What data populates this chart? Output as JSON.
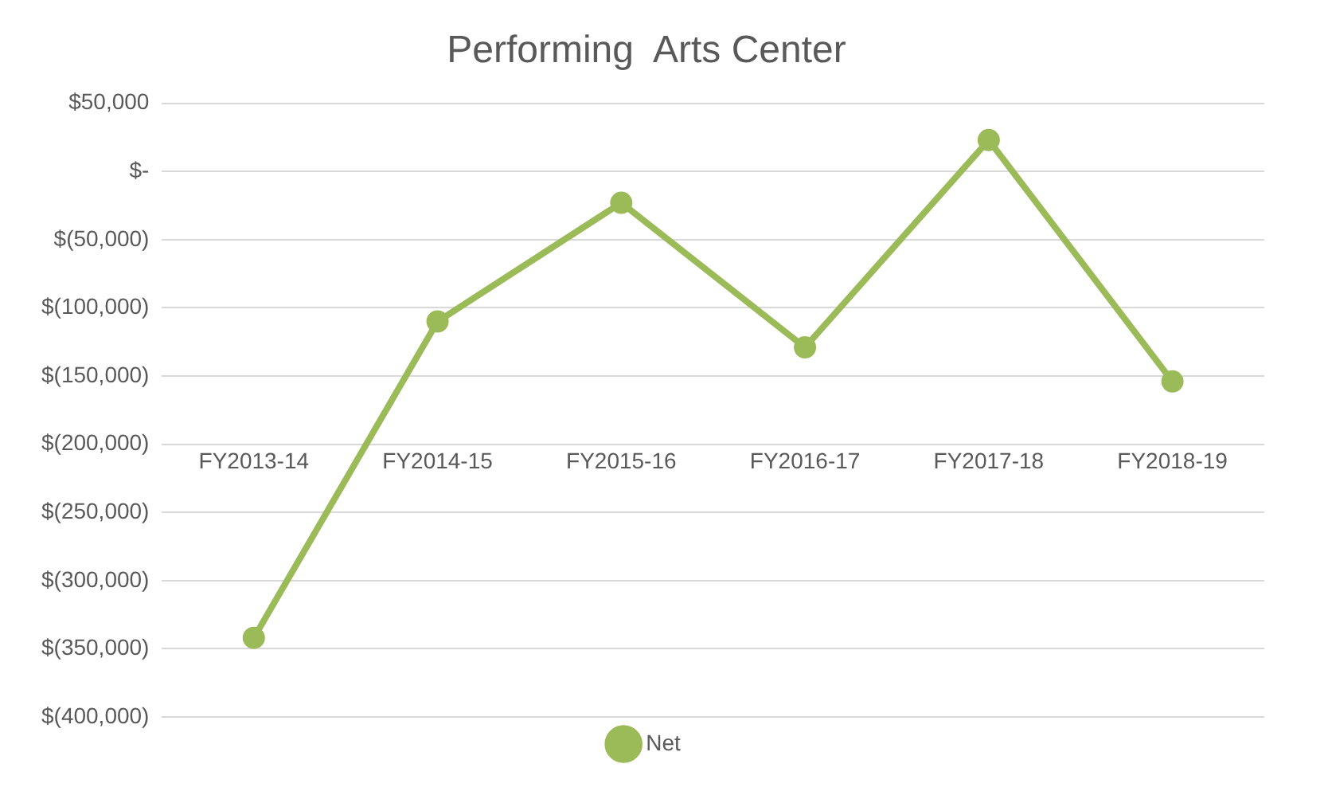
{
  "chart_data": {
    "type": "line",
    "title": "Performing  Arts Center",
    "categories": [
      "FY2013-14",
      "FY2014-15",
      "FY2015-16",
      "FY2016-17",
      "FY2017-18",
      "FY2018-19"
    ],
    "series": [
      {
        "name": "Net",
        "color": "#9bbb59",
        "values": [
          -342000,
          -110000,
          -23000,
          -129000,
          23000,
          -154000
        ]
      }
    ],
    "ylim": [
      -400000,
      50000
    ],
    "yticks": [
      {
        "value": -400000,
        "label": "$(400,000)"
      },
      {
        "value": -350000,
        "label": "$(350,000)"
      },
      {
        "value": -300000,
        "label": "$(300,000)"
      },
      {
        "value": -250000,
        "label": "$(250,000)"
      },
      {
        "value": -200000,
        "label": "$(200,000)"
      },
      {
        "value": -150000,
        "label": "$(150,000)"
      },
      {
        "value": -100000,
        "label": "$(100,000)"
      },
      {
        "value": -50000,
        "label": "$(50,000)"
      },
      {
        "value": 0,
        "label": "$-"
      },
      {
        "value": 50000,
        "label": "$50,000"
      }
    ],
    "grid": "y",
    "legend": "bottom",
    "marker": "circle",
    "line_style": "solid"
  }
}
